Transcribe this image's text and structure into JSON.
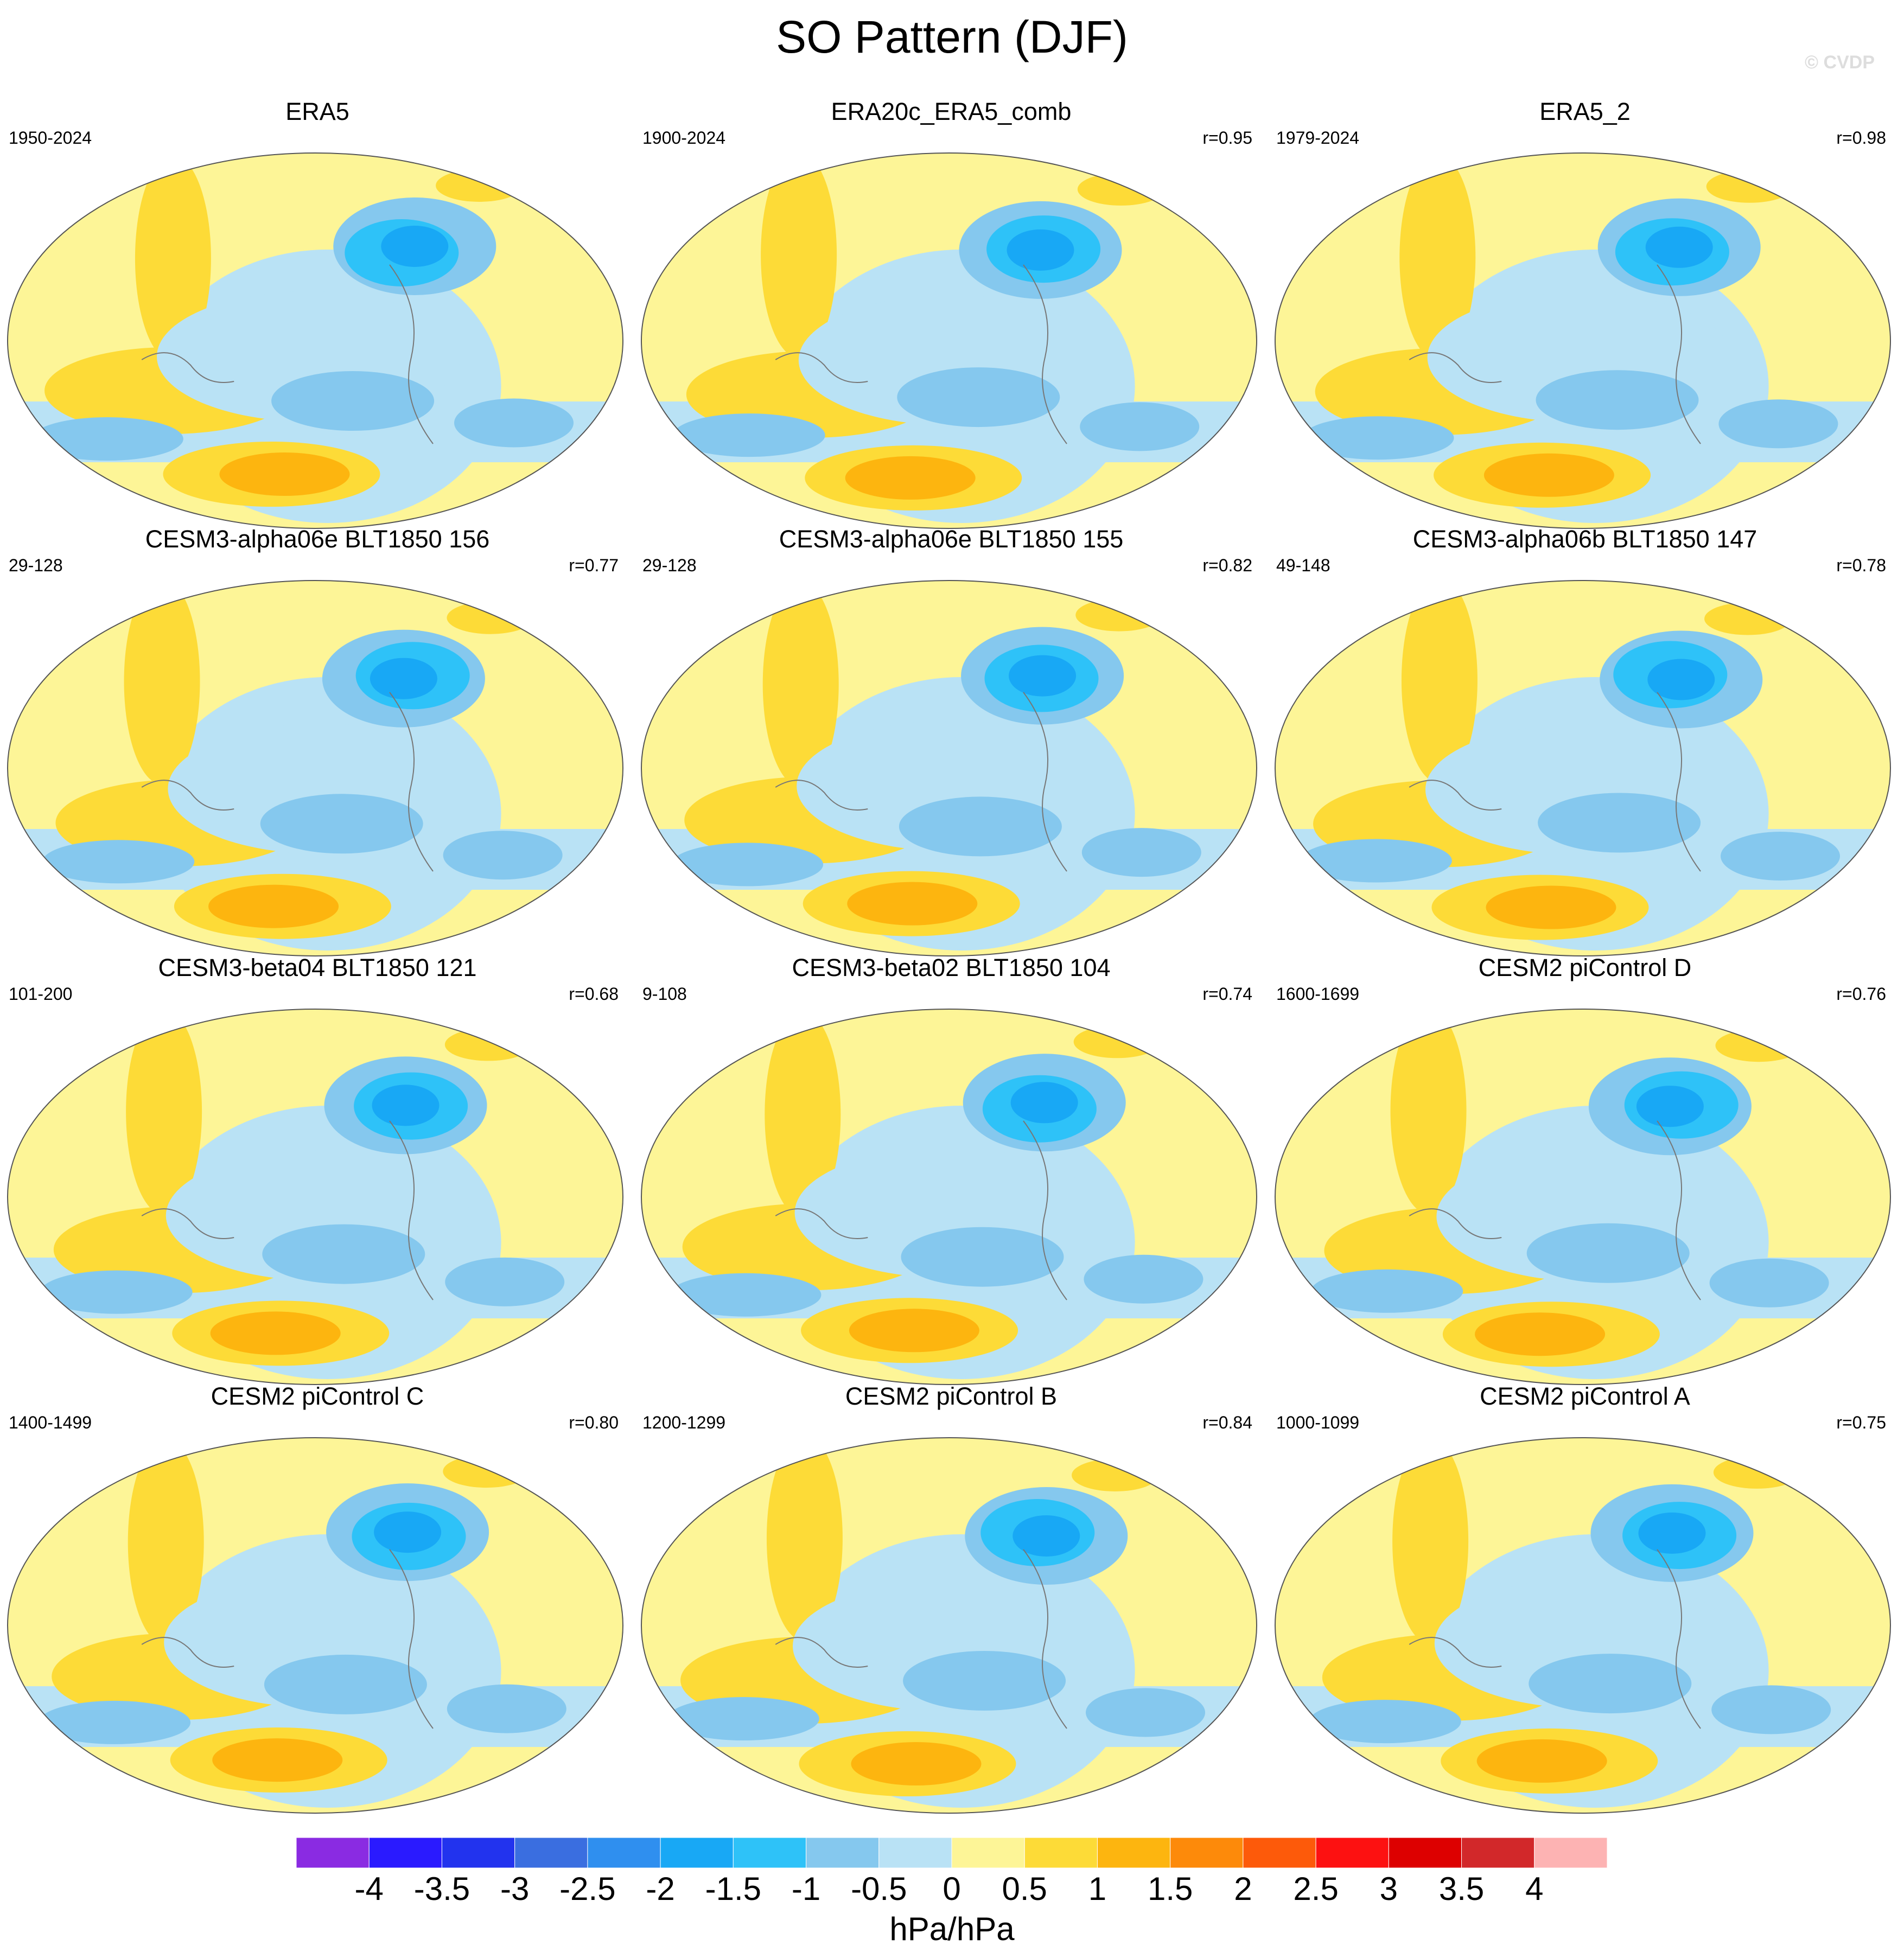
{
  "title": "SO Pattern (DJF)",
  "watermark": "© CVDP",
  "chart_data": {
    "type": "heatmap",
    "description_units": "hPa/hPa",
    "panels": [
      {
        "title": "ERA5",
        "period": "1950-2024",
        "corr": ""
      },
      {
        "title": "ERA20c_ERA5_comb",
        "period": "1900-2024",
        "corr": "r=0.95"
      },
      {
        "title": "ERA5_2",
        "period": "1979-2024",
        "corr": "r=0.98"
      },
      {
        "title": "CESM3-alpha06e BLT1850 156",
        "period": "29-128",
        "corr": "r=0.77"
      },
      {
        "title": "CESM3-alpha06e BLT1850 155",
        "period": "29-128",
        "corr": "r=0.82"
      },
      {
        "title": "CESM3-alpha06b BLT1850 147",
        "period": "49-148",
        "corr": "r=0.78"
      },
      {
        "title": "CESM3-beta04 BLT1850 121",
        "period": "101-200",
        "corr": "r=0.68"
      },
      {
        "title": "CESM3-beta02 BLT1850 104",
        "period": "9-108",
        "corr": "r=0.74"
      },
      {
        "title": "CESM2 piControl D",
        "period": "1600-1699",
        "corr": "r=0.76"
      },
      {
        "title": "CESM2 piControl C",
        "period": "1400-1499",
        "corr": "r=0.80"
      },
      {
        "title": "CESM2 piControl B",
        "period": "1200-1299",
        "corr": "r=0.84"
      },
      {
        "title": "CESM2 piControl A",
        "period": "1000-1099",
        "corr": "r=0.75"
      }
    ],
    "colorbar": {
      "levels": [
        "-4",
        "-3.5",
        "-3",
        "-2.5",
        "-2",
        "-1.5",
        "-1",
        "-0.5",
        "0",
        "0.5",
        "1",
        "1.5",
        "2",
        "2.5",
        "3",
        "3.5",
        "4"
      ],
      "colors": [
        "#8a2be2",
        "#2a1aff",
        "#2233ee",
        "#3a6ee0",
        "#2f8fef",
        "#18a8f5",
        "#2ec2f8",
        "#85c8ee",
        "#b9e2f5",
        "#fdf597",
        "#fddb37",
        "#fdb50f",
        "#fd8a0a",
        "#fd5a0a",
        "#fd1111",
        "#dd0000",
        "#d2282a",
        "#fdb3b3"
      ],
      "units": "hPa/hPa"
    }
  }
}
